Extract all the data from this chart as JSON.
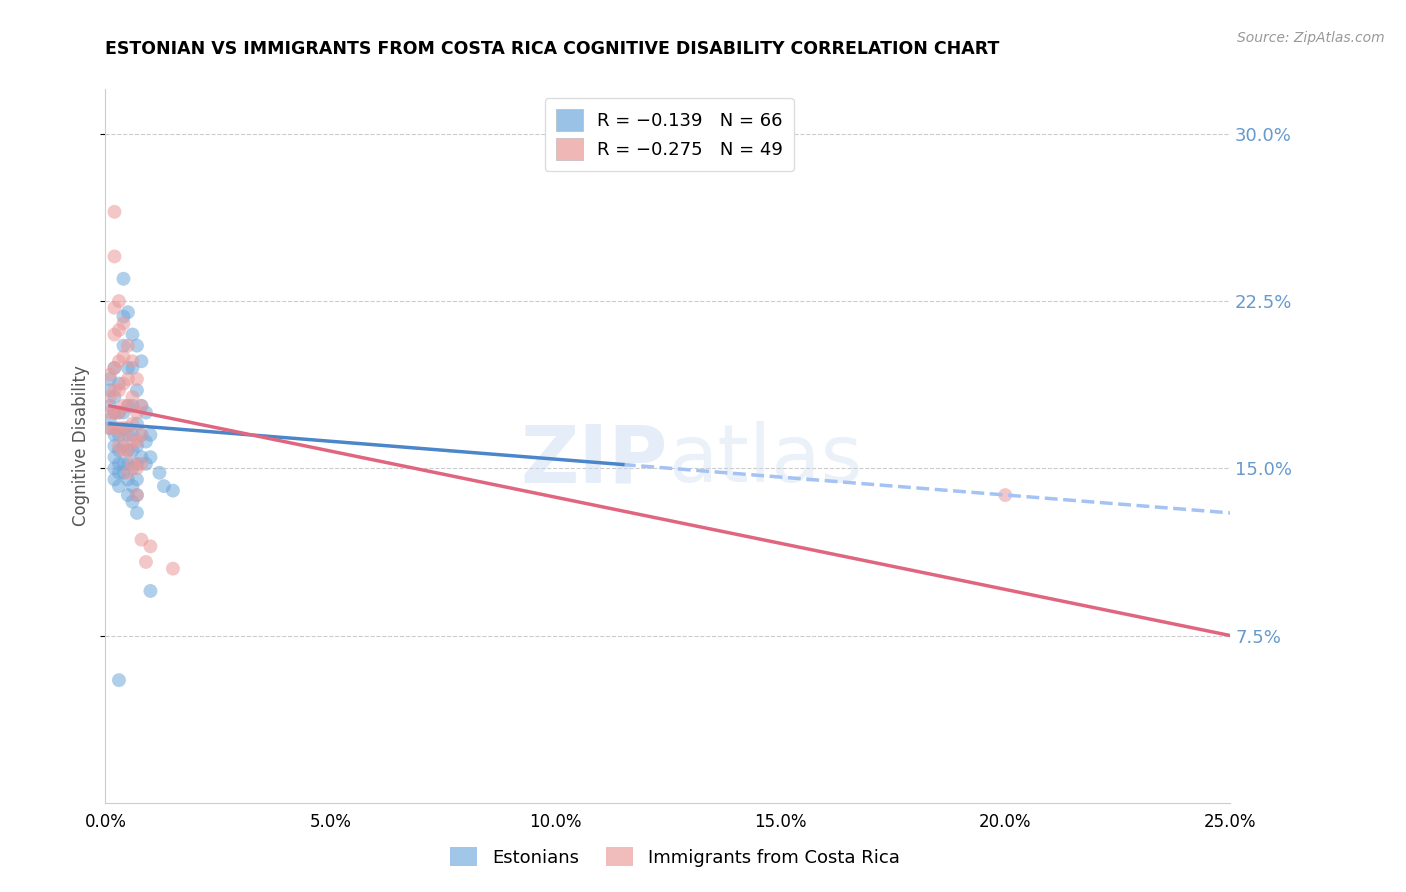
{
  "title": "ESTONIAN VS IMMIGRANTS FROM COSTA RICA COGNITIVE DISABILITY CORRELATION CHART",
  "source": "Source: ZipAtlas.com",
  "ylabel": "Cognitive Disability",
  "watermark": "ZIPatlas",
  "xlim": [
    0.0,
    0.25
  ],
  "ylim": [
    0.0,
    0.32
  ],
  "xticks": [
    0.0,
    0.05,
    0.1,
    0.15,
    0.2,
    0.25
  ],
  "yticks_right": [
    0.075,
    0.15,
    0.225,
    0.3
  ],
  "legend_blue_R": "R = −0.139",
  "legend_blue_N": "N = 66",
  "legend_pink_R": "R = −0.275",
  "legend_pink_N": "N = 49",
  "legend_blue_label": "Estonians",
  "legend_pink_label": "Immigrants from Costa Rica",
  "blue_color": "#6fa8dc",
  "pink_color": "#ea9999",
  "blue_line_color": "#4a86c8",
  "pink_line_color": "#e06680",
  "dashed_line_color": "#a4c2f4",
  "background_color": "#ffffff",
  "grid_color": "#cccccc",
  "right_axis_label_color": "#6699cc",
  "title_color": "#000000",
  "blue_scatter": [
    [
      0.001,
      0.19
    ],
    [
      0.001,
      0.185
    ],
    [
      0.001,
      0.178
    ],
    [
      0.001,
      0.172
    ],
    [
      0.001,
      0.168
    ],
    [
      0.002,
      0.195
    ],
    [
      0.002,
      0.182
    ],
    [
      0.002,
      0.175
    ],
    [
      0.002,
      0.165
    ],
    [
      0.002,
      0.16
    ],
    [
      0.002,
      0.155
    ],
    [
      0.002,
      0.15
    ],
    [
      0.002,
      0.145
    ],
    [
      0.003,
      0.188
    ],
    [
      0.003,
      0.175
    ],
    [
      0.003,
      0.165
    ],
    [
      0.003,
      0.158
    ],
    [
      0.003,
      0.152
    ],
    [
      0.003,
      0.148
    ],
    [
      0.003,
      0.142
    ],
    [
      0.004,
      0.235
    ],
    [
      0.004,
      0.218
    ],
    [
      0.004,
      0.205
    ],
    [
      0.004,
      0.175
    ],
    [
      0.004,
      0.168
    ],
    [
      0.004,
      0.16
    ],
    [
      0.004,
      0.152
    ],
    [
      0.004,
      0.148
    ],
    [
      0.005,
      0.22
    ],
    [
      0.005,
      0.195
    ],
    [
      0.005,
      0.178
    ],
    [
      0.005,
      0.165
    ],
    [
      0.005,
      0.158
    ],
    [
      0.005,
      0.152
    ],
    [
      0.005,
      0.145
    ],
    [
      0.005,
      0.138
    ],
    [
      0.006,
      0.21
    ],
    [
      0.006,
      0.195
    ],
    [
      0.006,
      0.178
    ],
    [
      0.006,
      0.165
    ],
    [
      0.006,
      0.158
    ],
    [
      0.006,
      0.15
    ],
    [
      0.006,
      0.142
    ],
    [
      0.006,
      0.135
    ],
    [
      0.007,
      0.205
    ],
    [
      0.007,
      0.185
    ],
    [
      0.007,
      0.17
    ],
    [
      0.007,
      0.16
    ],
    [
      0.007,
      0.152
    ],
    [
      0.007,
      0.145
    ],
    [
      0.007,
      0.138
    ],
    [
      0.007,
      0.13
    ],
    [
      0.008,
      0.198
    ],
    [
      0.008,
      0.178
    ],
    [
      0.008,
      0.165
    ],
    [
      0.008,
      0.155
    ],
    [
      0.009,
      0.175
    ],
    [
      0.009,
      0.162
    ],
    [
      0.009,
      0.152
    ],
    [
      0.01,
      0.165
    ],
    [
      0.01,
      0.155
    ],
    [
      0.012,
      0.148
    ],
    [
      0.013,
      0.142
    ],
    [
      0.003,
      0.055
    ],
    [
      0.01,
      0.095
    ],
    [
      0.015,
      0.14
    ]
  ],
  "pink_scatter": [
    [
      0.001,
      0.192
    ],
    [
      0.001,
      0.182
    ],
    [
      0.001,
      0.175
    ],
    [
      0.001,
      0.168
    ],
    [
      0.002,
      0.265
    ],
    [
      0.002,
      0.245
    ],
    [
      0.002,
      0.222
    ],
    [
      0.002,
      0.21
    ],
    [
      0.002,
      0.195
    ],
    [
      0.002,
      0.185
    ],
    [
      0.002,
      0.175
    ],
    [
      0.002,
      0.168
    ],
    [
      0.003,
      0.225
    ],
    [
      0.003,
      0.212
    ],
    [
      0.003,
      0.198
    ],
    [
      0.003,
      0.185
    ],
    [
      0.003,
      0.175
    ],
    [
      0.003,
      0.168
    ],
    [
      0.003,
      0.16
    ],
    [
      0.004,
      0.215
    ],
    [
      0.004,
      0.2
    ],
    [
      0.004,
      0.188
    ],
    [
      0.004,
      0.178
    ],
    [
      0.004,
      0.165
    ],
    [
      0.004,
      0.158
    ],
    [
      0.005,
      0.205
    ],
    [
      0.005,
      0.19
    ],
    [
      0.005,
      0.178
    ],
    [
      0.005,
      0.168
    ],
    [
      0.005,
      0.158
    ],
    [
      0.005,
      0.148
    ],
    [
      0.006,
      0.198
    ],
    [
      0.006,
      0.182
    ],
    [
      0.006,
      0.17
    ],
    [
      0.006,
      0.162
    ],
    [
      0.006,
      0.152
    ],
    [
      0.007,
      0.19
    ],
    [
      0.007,
      0.175
    ],
    [
      0.007,
      0.162
    ],
    [
      0.007,
      0.15
    ],
    [
      0.007,
      0.138
    ],
    [
      0.008,
      0.178
    ],
    [
      0.008,
      0.165
    ],
    [
      0.008,
      0.152
    ],
    [
      0.008,
      0.118
    ],
    [
      0.009,
      0.108
    ],
    [
      0.01,
      0.115
    ],
    [
      0.015,
      0.105
    ],
    [
      0.2,
      0.138
    ]
  ],
  "blue_trend_start_x": 0.001,
  "blue_trend_end_solid_x": 0.115,
  "blue_trend_end_x": 0.25,
  "blue_trend_start_y": 0.17,
  "blue_trend_end_y": 0.13,
  "pink_trend_start_x": 0.001,
  "pink_trend_end_x": 0.25,
  "pink_trend_start_y": 0.178,
  "pink_trend_end_y": 0.075,
  "marker_size": 100
}
